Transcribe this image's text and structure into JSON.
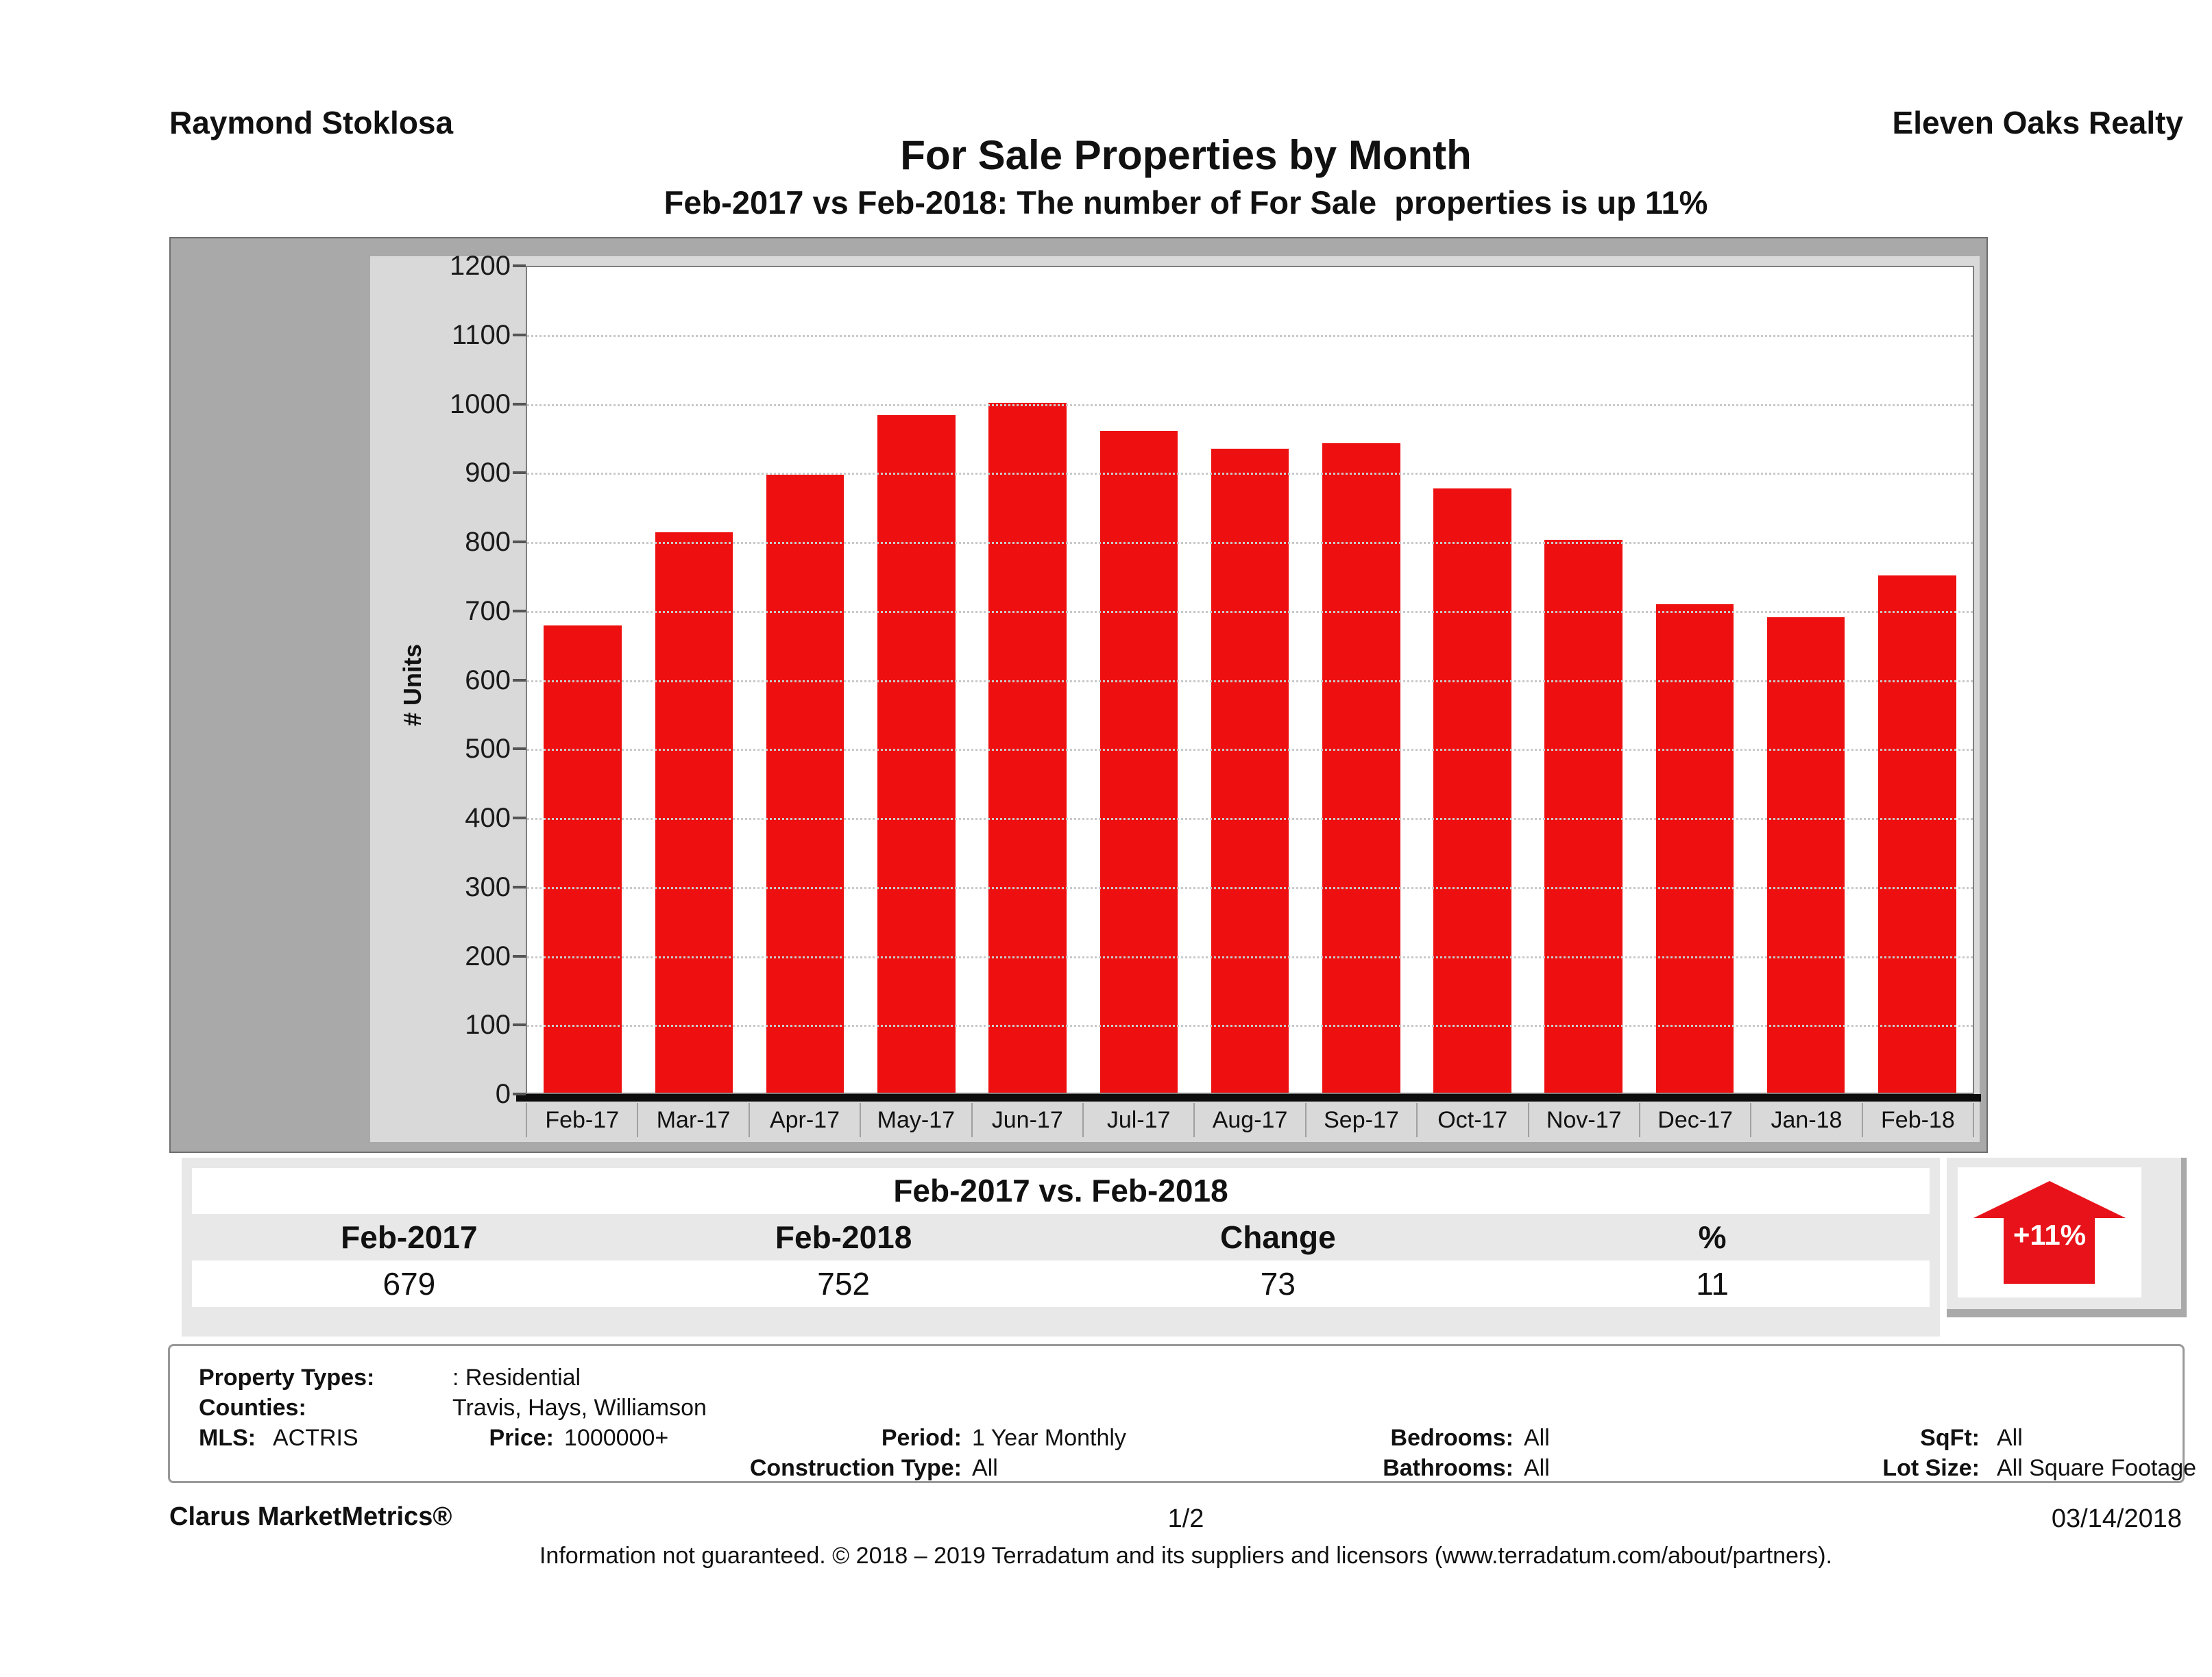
{
  "header": {
    "agent": "Raymond Stoklosa",
    "company": "Eleven Oaks Realty"
  },
  "title": "For Sale Properties by Month",
  "subtitle": "Feb-2017 vs Feb-2018: The number of For Sale  properties is up 11%",
  "chart_data": {
    "type": "bar",
    "categories": [
      "Feb-17",
      "Mar-17",
      "Apr-17",
      "May-17",
      "Jun-17",
      "Jul-17",
      "Aug-17",
      "Sep-17",
      "Oct-17",
      "Nov-17",
      "Dec-17",
      "Jan-18",
      "Feb-18"
    ],
    "values": [
      679,
      815,
      898,
      985,
      1003,
      962,
      936,
      944,
      878,
      804,
      710,
      691,
      752
    ],
    "title": "",
    "xlabel": "",
    "ylabel": "# Units",
    "ylim": [
      0,
      1200
    ],
    "ytick_step": 100,
    "grid": "horizontal-dotted",
    "legend": "none",
    "bar_color": "#ee1010"
  },
  "comparison_table": {
    "title": "Feb-2017 vs. Feb-2018",
    "columns": [
      "Feb-2017",
      "Feb-2018",
      "Change",
      "%"
    ],
    "values": [
      "679",
      "752",
      "73",
      "11"
    ]
  },
  "change_badge": {
    "label": "+11%",
    "direction": "up",
    "arrow_color": "#e8131a",
    "text_color": "#ffffff"
  },
  "filters": {
    "property_types_label": "Property Types:",
    "property_types_value": ": Residential",
    "counties_label": "Counties:",
    "counties_value": "Travis, Hays, Williamson",
    "mls_label": "MLS:",
    "mls_value": "ACTRIS",
    "price_label": "Price:",
    "price_value": "1000000+",
    "period_label": "Period:",
    "period_value": "1 Year Monthly",
    "construction_label": "Construction Type:",
    "construction_value": "All",
    "bedrooms_label": "Bedrooms:",
    "bedrooms_value": "All",
    "bathrooms_label": "Bathrooms:",
    "bathrooms_value": "All",
    "sqft_label": "SqFt:",
    "sqft_value": "All",
    "lot_size_label": "Lot Size:",
    "lot_size_value": "All Square Footage"
  },
  "footer": {
    "brand": "Clarus MarketMetrics®",
    "page": "1/2",
    "date": "03/14/2018",
    "disclaimer": "Information not guaranteed. © 2018 – 2019 Terradatum and its suppliers and licensors (www.terradatum.com/about/partners)."
  }
}
